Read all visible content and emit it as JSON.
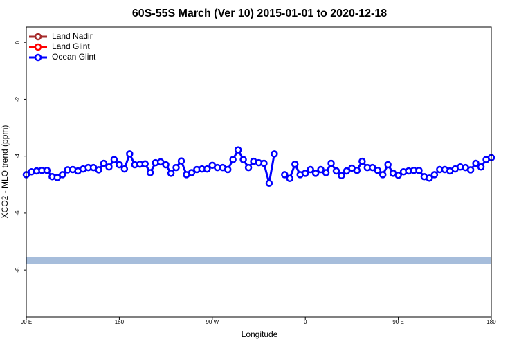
{
  "chart_data": {
    "type": "line",
    "title": "60S-55S March (Ver 10)   2015-01-01 to 2020-12-18",
    "x_label": "Longitude",
    "y_label": "XCO2 - MLO trend (ppm)",
    "xlim": [
      90,
      540
    ],
    "xticks": [
      {
        "value": 90,
        "label": "90 E"
      },
      {
        "value": 180,
        "label": "180"
      },
      {
        "value": 270,
        "label": "90 W"
      },
      {
        "value": 360,
        "label": "0"
      },
      {
        "value": 450,
        "label": "90 E"
      },
      {
        "value": 540,
        "label": "180"
      }
    ],
    "ylim": [
      -9.65,
      0.54
    ],
    "yticks": [
      0,
      -2,
      -4,
      -6,
      -8
    ],
    "legend_position": "top-left",
    "legend": [
      {
        "name": "Land Nadir",
        "color": "#a52a2a"
      },
      {
        "name": "Land Glint",
        "color": "#ff0000"
      }
    ],
    "band": {
      "range": [
        -7.78,
        -7.54
      ],
      "color": "#a6bddb"
    },
    "x": [
      90,
      95,
      100,
      105,
      110,
      115,
      120,
      125,
      130,
      135,
      140,
      145,
      150,
      155,
      160,
      165,
      170,
      175,
      180,
      185,
      190,
      195,
      200,
      205,
      210,
      215,
      220,
      225,
      230,
      235,
      240,
      245,
      250,
      255,
      260,
      265,
      270,
      275,
      280,
      285,
      290,
      295,
      300,
      305,
      310,
      315,
      320,
      325,
      330,
      335,
      340,
      345,
      350,
      355,
      360,
      365,
      370,
      375,
      380,
      385,
      390,
      395,
      400,
      405,
      410,
      415,
      420,
      425,
      430,
      435,
      440,
      445,
      450,
      455,
      460,
      465,
      470,
      475,
      480,
      485,
      490,
      495,
      500,
      505,
      510,
      515,
      520,
      525,
      530,
      535,
      540
    ],
    "series": [
      {
        "name": "Ocean Glint",
        "color": "#0000ff",
        "values": [
          -4.65,
          -4.55,
          -4.52,
          -4.5,
          -4.5,
          -4.72,
          -4.75,
          -4.65,
          -4.48,
          -4.47,
          -4.52,
          -4.45,
          -4.4,
          -4.4,
          -4.48,
          -4.25,
          -4.38,
          -4.12,
          -4.3,
          -4.45,
          -3.92,
          -4.3,
          -4.28,
          -4.27,
          -4.58,
          -4.23,
          -4.2,
          -4.3,
          -4.6,
          -4.4,
          -4.17,
          -4.65,
          -4.58,
          -4.47,
          -4.45,
          -4.45,
          -4.32,
          -4.4,
          -4.4,
          -4.47,
          -4.12,
          -3.78,
          -4.12,
          -4.4,
          -4.18,
          -4.23,
          -4.25,
          -4.95,
          -3.92,
          null,
          -4.65,
          -4.78,
          -4.28,
          -4.65,
          -4.6,
          -4.47,
          -4.6,
          -4.47,
          -4.58,
          -4.25,
          -4.52,
          -4.68,
          -4.52,
          -4.42,
          -4.5,
          -4.18,
          -4.4,
          -4.4,
          -4.5,
          -4.65,
          -4.3,
          -4.6,
          -4.67,
          -4.55,
          -4.52,
          -4.5,
          -4.5,
          -4.72,
          -4.77,
          -4.65,
          -4.47,
          -4.47,
          -4.52,
          -4.45,
          -4.38,
          -4.4,
          -4.48,
          -4.25,
          -4.38,
          -4.12,
          -4.05
        ]
      }
    ]
  }
}
